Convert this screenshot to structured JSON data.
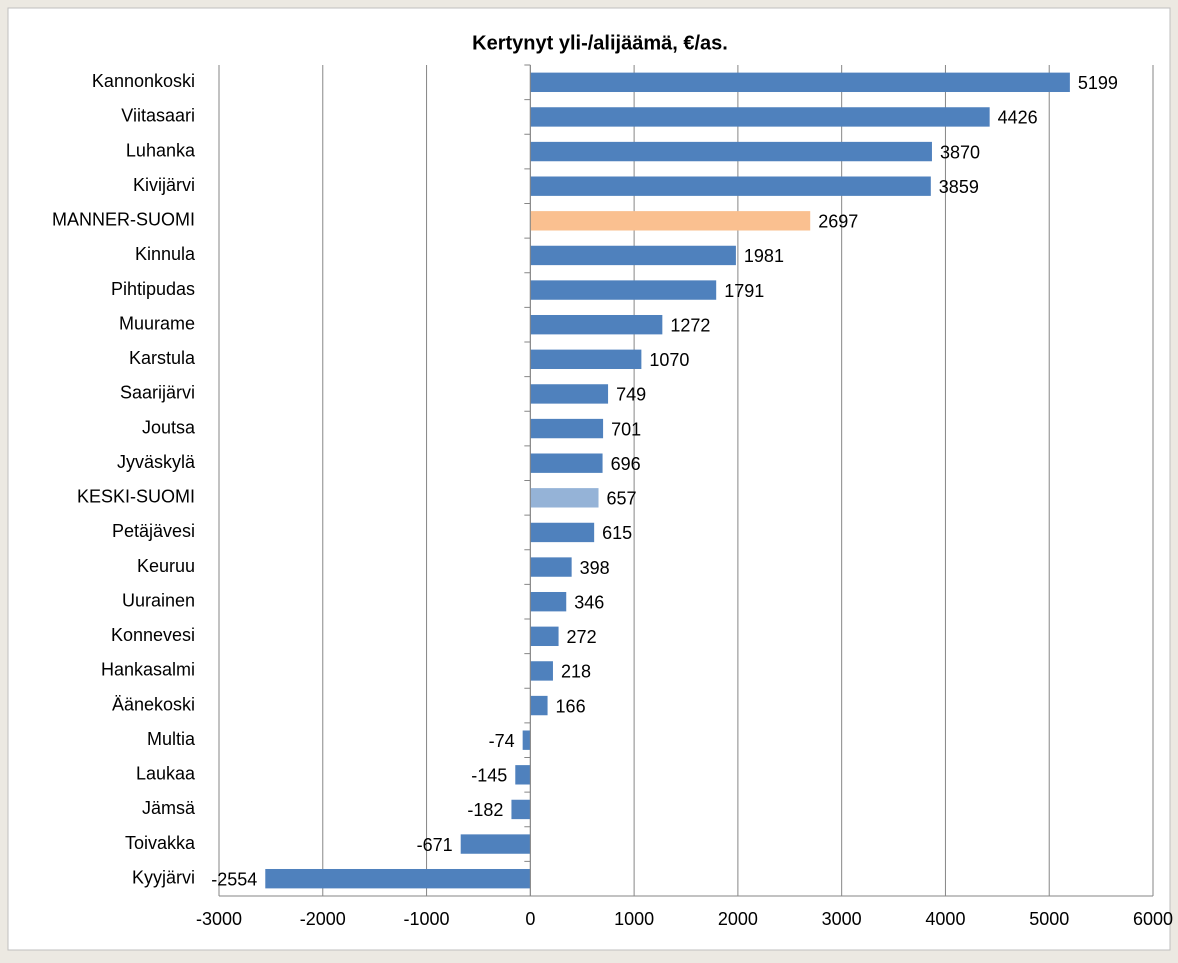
{
  "chart_data": {
    "type": "bar",
    "orientation": "horizontal",
    "title": "Kertynyt yli-/alijäämä, €/as.",
    "categories": [
      "Kannonkoski",
      "Viitasaari",
      "Luhanka",
      "Kivijärvi",
      "MANNER-SUOMI",
      "Kinnula",
      "Pihtipudas",
      "Muurame",
      "Karstula",
      "Saarijärvi",
      "Joutsa",
      "Jyväskylä",
      "KESKI-SUOMI",
      "Petäjävesi",
      "Keuruu",
      "Uurainen",
      "Konnevesi",
      "Hankasalmi",
      "Äänekoski",
      "Multia",
      "Laukaa",
      "Jämsä",
      "Toivakka",
      "Kyyjärvi"
    ],
    "values": [
      5199,
      4426,
      3870,
      3859,
      2697,
      1981,
      1791,
      1272,
      1070,
      749,
      701,
      696,
      657,
      615,
      398,
      346,
      272,
      218,
      166,
      -74,
      -145,
      -182,
      -671,
      -2554
    ],
    "color": "#4f81bd",
    "colors": [
      "#4f81bd",
      "#4f81bd",
      "#4f81bd",
      "#4f81bd",
      "#fac090",
      "#4f81bd",
      "#4f81bd",
      "#4f81bd",
      "#4f81bd",
      "#4f81bd",
      "#4f81bd",
      "#4f81bd",
      "#95b3d7",
      "#4f81bd",
      "#4f81bd",
      "#4f81bd",
      "#4f81bd",
      "#4f81bd",
      "#4f81bd",
      "#4f81bd",
      "#4f81bd",
      "#4f81bd",
      "#4f81bd",
      "#4f81bd"
    ],
    "xlim": [
      -3000,
      6000
    ],
    "xticks": [
      -3000,
      -2000,
      -1000,
      0,
      1000,
      2000,
      3000,
      4000,
      5000,
      6000
    ],
    "grid": true
  }
}
